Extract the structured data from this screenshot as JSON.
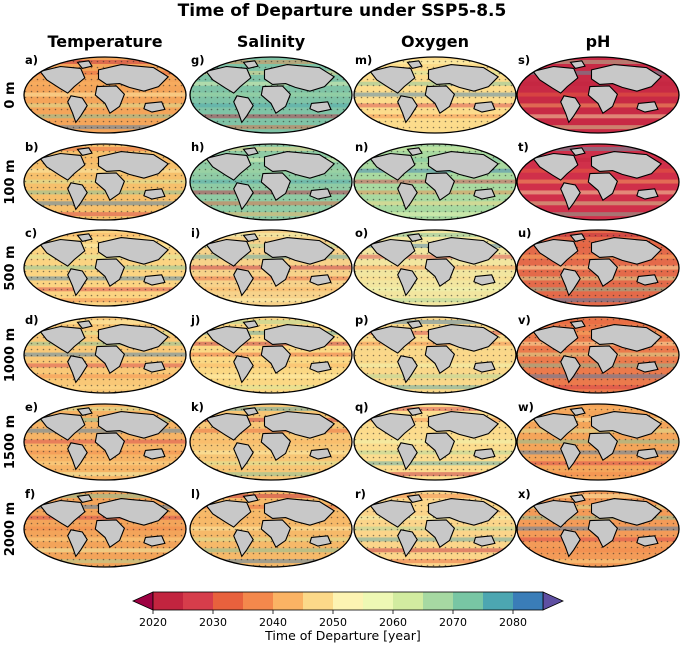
{
  "title": "Time of Departure under SSP5-8.5",
  "columns": [
    {
      "label": "Temperature"
    },
    {
      "label": "Salinity"
    },
    {
      "label": "Oxygen"
    },
    {
      "label": "pH"
    }
  ],
  "rows": [
    {
      "label": "0 m"
    },
    {
      "label": "100 m"
    },
    {
      "label": "500 m"
    },
    {
      "label": "1000 m"
    },
    {
      "label": "1500 m"
    },
    {
      "label": "2000 m"
    }
  ],
  "panel_labels": [
    [
      "a)",
      "g)",
      "m)",
      "s)"
    ],
    [
      "b)",
      "h)",
      "n)",
      "t)"
    ],
    [
      "c)",
      "i)",
      "o)",
      "u)"
    ],
    [
      "d)",
      "j)",
      "p)",
      "v)"
    ],
    [
      "e)",
      "k)",
      "q)",
      "w)"
    ],
    [
      "f)",
      "l)",
      "r)",
      "x)"
    ]
  ],
  "colorbar": {
    "label": "Time of Departure [year]",
    "ticks": [
      "2020",
      "2030",
      "2040",
      "2050",
      "2060",
      "2070",
      "2080"
    ],
    "colors": [
      "#c2243f",
      "#d63d4b",
      "#e8613d",
      "#f4884c",
      "#fbb364",
      "#fcd989",
      "#fdf3b2",
      "#eef8b4",
      "#d2eca0",
      "#a6d9a2",
      "#78c6a4",
      "#4ca6b1",
      "#3a7db8"
    ],
    "min_color": "#9e0142",
    "max_color": "#5e4fa2"
  },
  "panel_tones": [
    [
      "#f4a55a",
      "#7fc3a6",
      "#fcdc8c",
      "#c82a45"
    ],
    [
      "#f6c06c",
      "#8fcba4",
      "#a9d9a0",
      "#d0304a"
    ],
    [
      "#fbd482",
      "#f7d28a",
      "#f2e6a0",
      "#e46a4a"
    ],
    [
      "#f9c877",
      "#fbd884",
      "#f9d88a",
      "#eb7a4c"
    ],
    [
      "#f6b466",
      "#f7c676",
      "#fbdc8e",
      "#f4a55a"
    ],
    [
      "#f3a45a",
      "#f6b969",
      "#fbd58a",
      "#f39b58"
    ]
  ]
}
